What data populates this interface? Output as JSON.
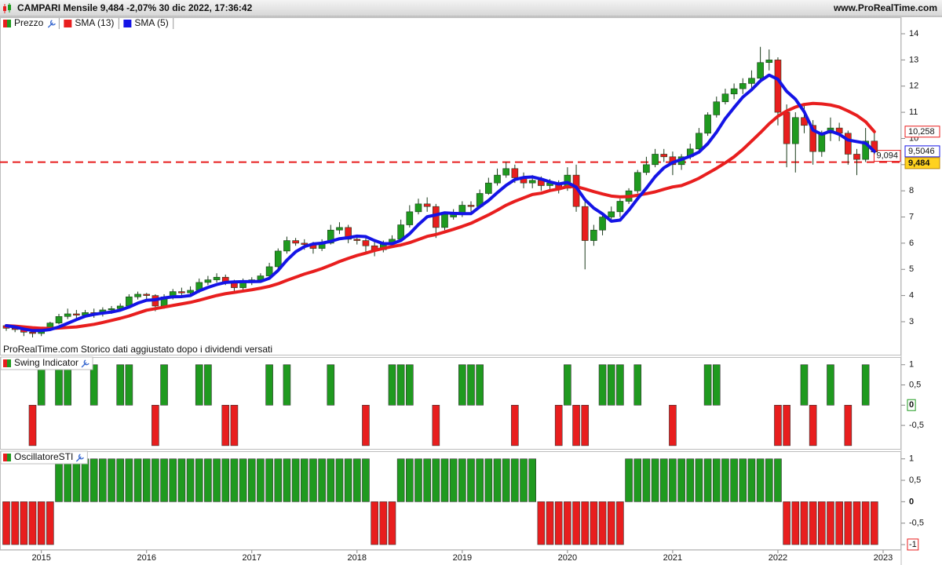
{
  "header": {
    "title": "CAMPARI Mensile 9,484 -2,07% 30 dic 2022, 17:36:42",
    "site": "www.ProRealTime.com"
  },
  "chart_data": [
    {
      "type": "candlestick",
      "note": "ProRealTime.com  Storico dati aggiustato dopo i dividendi versati",
      "categories": [
        null,
        null,
        null,
        null,
        "2015",
        null,
        null,
        null,
        null,
        null,
        null,
        null,
        null,
        null,
        null,
        null,
        "2016",
        null,
        null,
        null,
        null,
        null,
        null,
        null,
        null,
        null,
        null,
        null,
        "2017",
        null,
        null,
        null,
        null,
        null,
        null,
        null,
        null,
        null,
        null,
        null,
        "2018",
        null,
        null,
        null,
        null,
        null,
        null,
        null,
        null,
        null,
        null,
        null,
        "2019",
        null,
        null,
        null,
        null,
        null,
        null,
        null,
        null,
        null,
        null,
        null,
        "2020",
        null,
        null,
        null,
        null,
        null,
        null,
        null,
        null,
        null,
        null,
        null,
        "2021",
        null,
        null,
        null,
        null,
        null,
        null,
        null,
        null,
        null,
        null,
        null,
        "2022",
        null,
        null,
        null,
        null,
        null,
        null,
        null,
        null,
        null,
        null,
        null,
        "2023"
      ],
      "series": [
        {
          "name": "Prezzo",
          "up_color": "#1f9a1f",
          "down_color": "#e81e1e",
          "last_label": "9,484",
          "open": [
            2.85,
            2.75,
            2.7,
            2.6,
            2.55,
            2.7,
            2.95,
            3.2,
            3.3,
            3.25,
            3.35,
            3.3,
            3.45,
            3.5,
            3.6,
            3.95,
            4.05,
            4.0,
            3.6,
            3.95,
            4.15,
            4.1,
            4.2,
            4.5,
            4.6,
            4.7,
            4.5,
            4.3,
            4.55,
            4.6,
            4.75,
            5.1,
            5.7,
            6.1,
            6.0,
            5.95,
            5.8,
            6.0,
            6.5,
            6.6,
            6.15,
            6.1,
            5.9,
            5.75,
            6.0,
            6.15,
            6.7,
            7.2,
            7.5,
            7.4,
            6.6,
            7.0,
            7.1,
            7.45,
            7.4,
            7.9,
            8.3,
            8.6,
            8.85,
            8.5,
            8.3,
            8.4,
            8.2,
            8.3,
            8.1,
            8.6,
            7.4,
            6.1,
            6.5,
            7.0,
            7.2,
            7.6,
            8.0,
            8.7,
            9.0,
            9.4,
            9.3,
            9.0,
            9.3,
            9.6,
            10.2,
            10.9,
            11.4,
            11.7,
            11.9,
            12.1,
            12.3,
            12.9,
            13.0,
            11.0,
            9.8,
            10.8,
            10.5,
            9.5,
            10.2,
            10.4,
            10.2,
            9.4,
            9.2,
            9.9,
            null
          ],
          "high": [
            2.9,
            2.85,
            2.75,
            2.7,
            2.8,
            3.0,
            3.3,
            3.5,
            3.45,
            3.45,
            3.5,
            3.55,
            3.6,
            3.7,
            4.05,
            4.15,
            4.1,
            4.05,
            4.05,
            4.25,
            4.3,
            4.35,
            4.65,
            4.75,
            4.85,
            4.8,
            4.6,
            4.65,
            4.7,
            4.85,
            5.25,
            5.8,
            6.25,
            6.2,
            6.15,
            6.05,
            6.15,
            6.7,
            6.8,
            6.7,
            6.3,
            6.2,
            6.05,
            6.1,
            6.3,
            6.9,
            7.45,
            7.7,
            7.75,
            7.5,
            7.2,
            7.3,
            7.6,
            7.6,
            8.05,
            8.5,
            8.85,
            9.1,
            9.0,
            8.7,
            8.6,
            8.55,
            8.45,
            8.4,
            8.9,
            9.0,
            7.6,
            6.7,
            7.1,
            7.4,
            7.7,
            8.1,
            8.8,
            9.3,
            9.6,
            9.6,
            9.5,
            9.4,
            9.8,
            10.4,
            11.0,
            11.6,
            11.9,
            12.1,
            12.3,
            12.6,
            13.5,
            13.4,
            13.1,
            11.3,
            11.0,
            11.3,
            10.7,
            10.3,
            10.8,
            10.6,
            10.3,
            9.6,
            10.4,
            10.3,
            null
          ],
          "low": [
            2.65,
            2.6,
            2.45,
            2.4,
            2.45,
            2.65,
            2.9,
            3.1,
            3.1,
            3.15,
            3.15,
            3.2,
            3.3,
            3.4,
            3.5,
            3.85,
            3.85,
            3.4,
            3.5,
            3.85,
            4.0,
            4.0,
            4.1,
            4.4,
            4.5,
            4.4,
            4.1,
            4.2,
            4.4,
            4.5,
            4.7,
            5.0,
            5.6,
            5.9,
            5.75,
            5.6,
            5.7,
            5.95,
            6.35,
            6.0,
            5.95,
            5.65,
            5.5,
            5.65,
            5.9,
            6.05,
            6.6,
            7.1,
            7.2,
            6.2,
            6.5,
            6.9,
            7.0,
            7.2,
            7.35,
            7.85,
            8.2,
            8.5,
            8.3,
            8.1,
            8.1,
            8.0,
            8.0,
            7.9,
            8.0,
            7.2,
            5.0,
            5.9,
            6.3,
            6.8,
            7.0,
            7.5,
            7.9,
            8.6,
            8.9,
            9.1,
            8.6,
            8.8,
            9.2,
            9.5,
            10.1,
            10.8,
            11.3,
            11.5,
            11.7,
            11.9,
            12.2,
            12.6,
            10.5,
            8.9,
            8.7,
            10.2,
            9.0,
            9.3,
            9.9,
            9.9,
            9.0,
            8.6,
            9.1,
            9.4,
            null
          ],
          "close": [
            2.75,
            2.7,
            2.6,
            2.55,
            2.7,
            2.95,
            3.2,
            3.3,
            3.25,
            3.35,
            3.3,
            3.45,
            3.5,
            3.6,
            3.95,
            4.05,
            4.0,
            3.6,
            3.95,
            4.15,
            4.1,
            4.2,
            4.5,
            4.6,
            4.7,
            4.5,
            4.3,
            4.55,
            4.6,
            4.75,
            5.1,
            5.7,
            6.1,
            6.0,
            5.95,
            5.8,
            6.0,
            6.5,
            6.6,
            6.15,
            6.1,
            5.9,
            5.75,
            6.0,
            6.15,
            6.7,
            7.2,
            7.5,
            7.4,
            6.6,
            7.1,
            7.1,
            7.45,
            7.4,
            7.9,
            8.3,
            8.6,
            8.85,
            8.5,
            8.3,
            8.4,
            8.2,
            8.3,
            8.1,
            8.6,
            7.4,
            6.1,
            6.5,
            7.0,
            7.2,
            7.6,
            8.0,
            8.7,
            9.0,
            9.4,
            9.3,
            9.0,
            9.3,
            9.6,
            10.2,
            10.9,
            11.4,
            11.7,
            11.9,
            12.1,
            12.3,
            12.9,
            13.0,
            11.0,
            9.8,
            10.8,
            10.5,
            9.5,
            10.2,
            10.4,
            10.2,
            9.4,
            9.2,
            9.9,
            9.484,
            null
          ]
        },
        {
          "name": "SMA (13)",
          "color": "#e81e1e",
          "last_label": "10,258",
          "values": [
            2.85,
            2.83,
            2.8,
            2.77,
            2.75,
            2.74,
            2.76,
            2.78,
            2.8,
            2.85,
            2.9,
            2.97,
            3.05,
            3.13,
            3.22,
            3.33,
            3.44,
            3.5,
            3.56,
            3.62,
            3.68,
            3.74,
            3.82,
            3.91,
            4.0,
            4.07,
            4.12,
            4.17,
            4.22,
            4.28,
            4.35,
            4.45,
            4.58,
            4.7,
            4.82,
            4.92,
            5.03,
            5.16,
            5.3,
            5.42,
            5.53,
            5.62,
            5.72,
            5.8,
            5.87,
            5.93,
            6.02,
            6.14,
            6.26,
            6.33,
            6.43,
            6.53,
            6.64,
            6.76,
            6.92,
            7.08,
            7.26,
            7.45,
            7.6,
            7.73,
            7.86,
            7.91,
            8.01,
            8.07,
            8.16,
            8.16,
            8.07,
            7.97,
            7.88,
            7.8,
            7.77,
            7.78,
            7.83,
            7.89,
            7.96,
            8.06,
            8.15,
            8.2,
            8.33,
            8.48,
            8.67,
            8.86,
            9.07,
            9.3,
            9.58,
            9.9,
            10.22,
            10.56,
            10.85,
            11.05,
            11.2,
            11.3,
            11.34,
            11.32,
            11.28,
            11.2,
            11.05,
            10.88,
            10.64,
            10.258,
            null
          ]
        },
        {
          "name": "SMA (5)",
          "color": "#1414e6",
          "last_label": "9,5046",
          "values": [
            2.85,
            2.8,
            2.72,
            2.66,
            2.66,
            2.7,
            2.8,
            2.94,
            3.08,
            3.21,
            3.28,
            3.33,
            3.37,
            3.44,
            3.56,
            3.71,
            3.82,
            3.84,
            3.91,
            3.95,
            3.96,
            4.0,
            4.18,
            4.31,
            4.42,
            4.5,
            4.52,
            4.53,
            4.53,
            4.54,
            4.66,
            4.96,
            5.35,
            5.67,
            5.87,
            5.97,
            6.0,
            6.07,
            6.17,
            6.21,
            6.27,
            6.25,
            6.1,
            5.98,
            5.98,
            6.1,
            6.36,
            6.71,
            7.01,
            7.08,
            7.16,
            7.14,
            7.13,
            7.13,
            7.39,
            7.63,
            7.93,
            8.21,
            8.43,
            8.51,
            8.53,
            8.45,
            8.34,
            8.26,
            8.32,
            8.14,
            7.66,
            7.34,
            7.12,
            6.84,
            6.88,
            7.26,
            7.7,
            8.1,
            8.54,
            8.88,
            9.08,
            9.2,
            9.32,
            9.48,
            9.8,
            10.24,
            10.76,
            11.18,
            11.58,
            11.86,
            12.2,
            12.42,
            12.26,
            11.8,
            11.5,
            11.02,
            10.32,
            10.16,
            10.28,
            10.16,
            9.94,
            9.88,
            9.82,
            9.5046,
            null
          ]
        }
      ],
      "hline": {
        "value": 9.094,
        "label": "9,094",
        "color": "#e81e1e"
      },
      "ylim": [
        1.74,
        14.6
      ],
      "yticks": [
        3,
        4,
        5,
        6,
        7,
        8,
        9,
        10,
        11,
        12,
        13,
        14
      ]
    },
    {
      "type": "bar",
      "title": "Swing Indicator",
      "up_color": "#1f9a1f",
      "down_color": "#e81e1e",
      "last_value_box": true,
      "values": [
        0,
        0,
        0,
        -1,
        1,
        0,
        1,
        1,
        0,
        0,
        1,
        0,
        0,
        1,
        1,
        0,
        0,
        -1,
        1,
        0,
        0,
        0,
        1,
        1,
        0,
        -1,
        -1,
        0,
        0,
        0,
        1,
        0,
        1,
        0,
        0,
        0,
        0,
        1,
        0,
        0,
        0,
        -1,
        0,
        0,
        1,
        1,
        1,
        0,
        0,
        -1,
        0,
        0,
        1,
        1,
        1,
        0,
        0,
        0,
        -1,
        0,
        0,
        0,
        0,
        -1,
        1,
        -1,
        -1,
        0,
        1,
        1,
        1,
        0,
        1,
        0,
        0,
        0,
        -1,
        0,
        0,
        0,
        1,
        1,
        0,
        0,
        0,
        0,
        0,
        0,
        -1,
        -1,
        0,
        1,
        -1,
        0,
        1,
        0,
        -1,
        0,
        1,
        0,
        null
      ],
      "ylim": [
        -1.08,
        1.17
      ],
      "yticks": [
        1,
        {
          "value": 0.5,
          "label": "0,5"
        },
        0,
        {
          "value": -0.5,
          "label": "-0,5"
        }
      ]
    },
    {
      "type": "bar",
      "title": "OscillatoreSTI",
      "up_color": "#1f9a1f",
      "down_color": "#e81e1e",
      "last_value_box": true,
      "values": [
        -1,
        -1,
        -1,
        -1,
        -1,
        -1,
        1,
        1,
        1,
        1,
        1,
        1,
        1,
        1,
        1,
        1,
        1,
        1,
        1,
        1,
        1,
        1,
        1,
        1,
        1,
        1,
        1,
        1,
        1,
        1,
        1,
        1,
        1,
        1,
        1,
        1,
        1,
        1,
        1,
        1,
        1,
        1,
        -1,
        -1,
        -1,
        1,
        1,
        1,
        1,
        1,
        1,
        1,
        1,
        1,
        1,
        1,
        1,
        1,
        1,
        1,
        1,
        -1,
        -1,
        -1,
        -1,
        -1,
        -1,
        -1,
        -1,
        -1,
        -1,
        1,
        1,
        1,
        1,
        1,
        1,
        1,
        1,
        1,
        1,
        1,
        1,
        1,
        1,
        1,
        1,
        1,
        1,
        -1,
        -1,
        -1,
        -1,
        -1,
        -1,
        -1,
        -1,
        -1,
        -1,
        -1,
        null
      ],
      "ylim": [
        -1.11,
        1.16
      ],
      "yticks": [
        1,
        {
          "value": 0.5,
          "label": "0,5"
        },
        0,
        {
          "value": -0.5,
          "label": "-0,5"
        },
        -1
      ]
    }
  ]
}
